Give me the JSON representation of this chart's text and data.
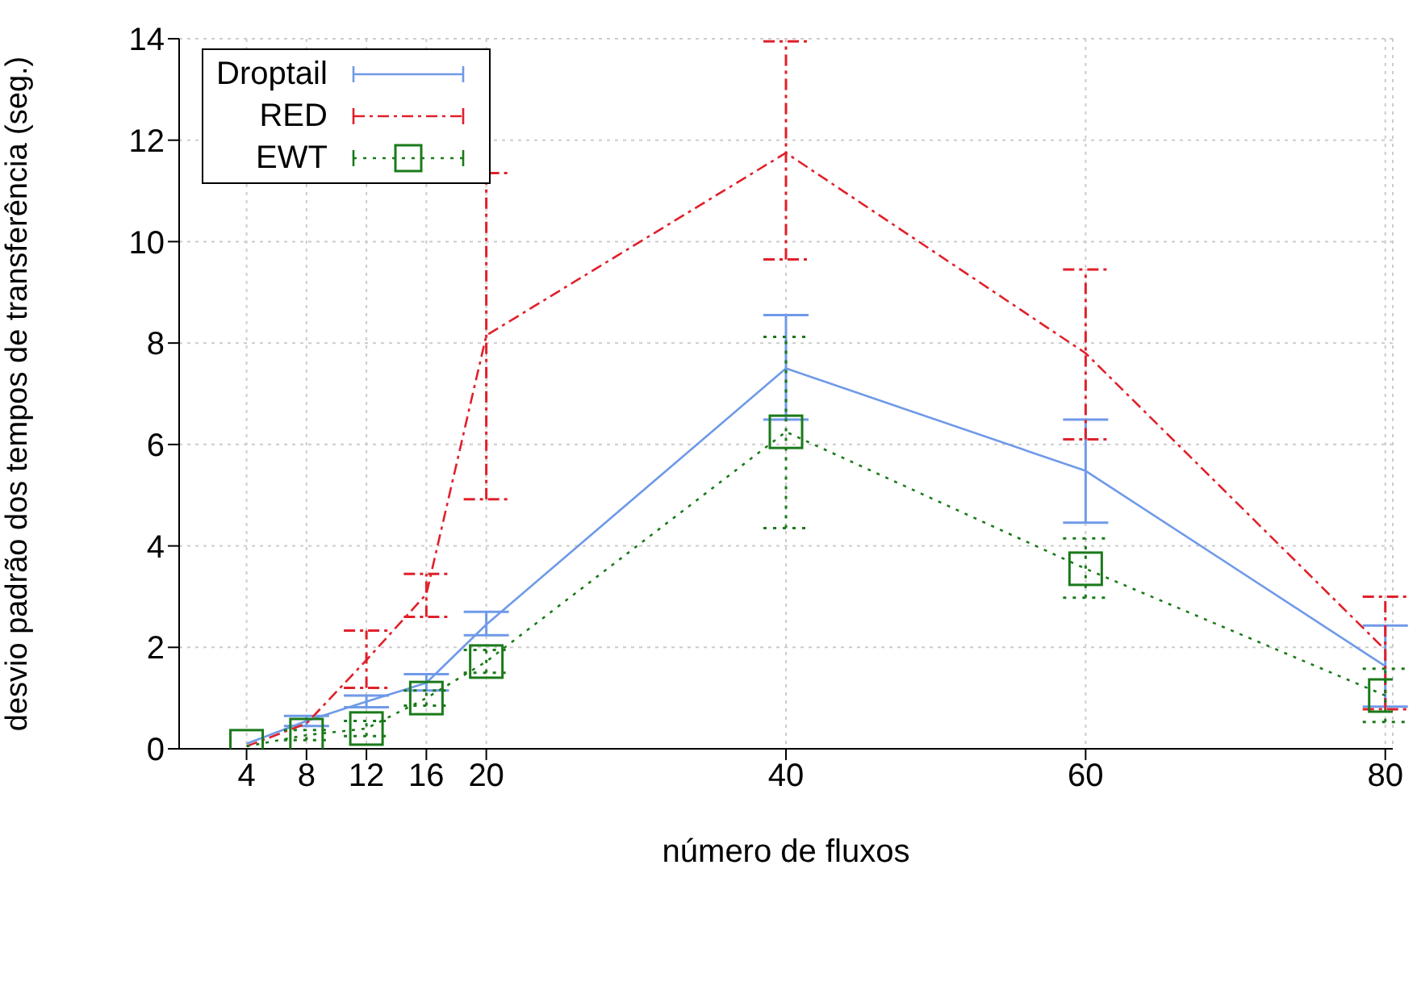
{
  "chart_data": {
    "type": "line",
    "xlabel": "número de fluxos",
    "ylabel": "desvio padrão dos tempos de transferência (seg.)",
    "x": [
      4,
      8,
      12,
      16,
      20,
      40,
      60,
      80
    ],
    "xlim": [
      -0.5,
      80.5
    ],
    "xticks": [
      4,
      8,
      12,
      16,
      20,
      40,
      60,
      80
    ],
    "ylim": [
      0,
      14
    ],
    "yticks": [
      0,
      2,
      4,
      6,
      8,
      10,
      12,
      14
    ],
    "grid": true,
    "legend": "top left",
    "series": [
      {
        "name": "Droptail",
        "color": "#6f9ae8",
        "line_style": "solid",
        "marker": "none",
        "values": [
          0.1,
          0.55,
          0.93,
          1.3,
          2.45,
          7.5,
          5.48,
          1.63
        ],
        "errors": [
          null,
          [
            0.45,
            0.65
          ],
          [
            0.82,
            1.05
          ],
          [
            1.15,
            1.47
          ],
          [
            2.24,
            2.7
          ],
          [
            6.49,
            8.55
          ],
          [
            4.46,
            6.49
          ],
          [
            0.83,
            2.43
          ]
        ]
      },
      {
        "name": "RED",
        "color": "#e0202a",
        "line_style": "dashed",
        "marker": "none",
        "values": [
          0.05,
          0.5,
          1.75,
          3.05,
          8.15,
          11.75,
          7.8,
          1.95
        ],
        "errors": [
          null,
          null,
          [
            1.2,
            2.33
          ],
          [
            2.6,
            3.45
          ],
          [
            4.92,
            11.35
          ],
          [
            9.65,
            13.95
          ],
          [
            6.1,
            9.45
          ],
          [
            0.78,
            3.0
          ]
        ]
      },
      {
        "name": "EWT",
        "color": "#1a7a1a",
        "line_style": "dotted",
        "marker": "square",
        "values": [
          0.05,
          0.27,
          0.4,
          1.0,
          1.72,
          6.25,
          3.55,
          1.05
        ],
        "errors": [
          null,
          [
            0.17,
            0.37
          ],
          [
            0.25,
            0.55
          ],
          [
            0.85,
            1.15
          ],
          [
            1.5,
            1.95
          ],
          [
            4.35,
            8.12
          ],
          [
            2.98,
            4.15
          ],
          [
            0.53,
            1.58
          ]
        ]
      }
    ]
  }
}
